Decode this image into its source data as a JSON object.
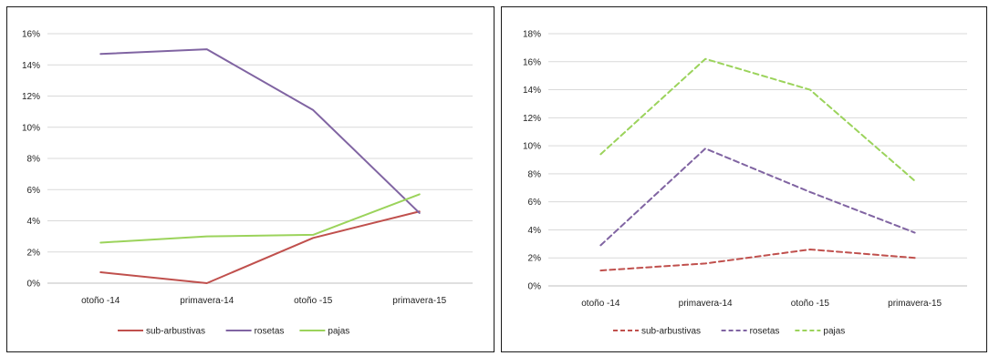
{
  "chart_data": [
    {
      "type": "line",
      "categories": [
        "otoño -14",
        "primavera-14",
        "otoño -15",
        "primavera-15"
      ],
      "ylim": [
        0,
        16
      ],
      "yticks": [
        "0%",
        "2%",
        "4%",
        "6%",
        "8%",
        "10%",
        "12%",
        "14%",
        "16%"
      ],
      "grid": true,
      "legend": "bottom",
      "line_style": "solid",
      "series": [
        {
          "name": "sub-arbustivas",
          "color": "#c0504d",
          "values": [
            0.7,
            0.0,
            2.9,
            4.6
          ]
        },
        {
          "name": "rosetas",
          "color": "#8064a2",
          "values": [
            14.7,
            15.0,
            11.1,
            4.5
          ]
        },
        {
          "name": "pajas",
          "color": "#9bd35b",
          "values": [
            2.6,
            3.0,
            3.1,
            5.7
          ]
        }
      ]
    },
    {
      "type": "line",
      "categories": [
        "otoño -14",
        "primavera-14",
        "otoño -15",
        "primavera-15"
      ],
      "ylim": [
        0,
        18
      ],
      "yticks": [
        "0%",
        "2%",
        "4%",
        "6%",
        "8%",
        "10%",
        "12%",
        "14%",
        "16%",
        "18%"
      ],
      "grid": true,
      "legend": "bottom",
      "line_style": "dashed",
      "series": [
        {
          "name": "sub-arbustivas",
          "color": "#c0504d",
          "values": [
            1.1,
            1.6,
            2.6,
            2.0
          ]
        },
        {
          "name": "rosetas",
          "color": "#8064a2",
          "values": [
            2.9,
            9.8,
            6.7,
            3.8
          ]
        },
        {
          "name": "pajas",
          "color": "#9bd35b",
          "values": [
            9.4,
            16.2,
            14.0,
            7.5
          ]
        }
      ]
    }
  ]
}
